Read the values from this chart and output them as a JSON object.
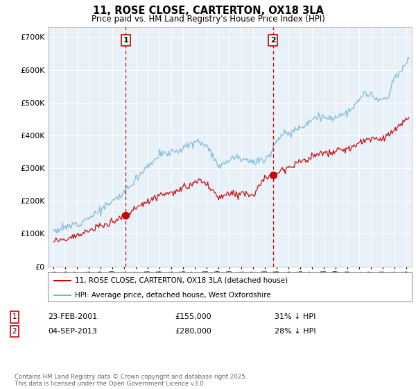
{
  "title": "11, ROSE CLOSE, CARTERTON, OX18 3LA",
  "subtitle": "Price paid vs. HM Land Registry's House Price Index (HPI)",
  "ytick_values": [
    0,
    100000,
    200000,
    300000,
    400000,
    500000,
    600000,
    700000
  ],
  "ylim": [
    0,
    730000
  ],
  "xlim_start": 1994.5,
  "xlim_end": 2025.5,
  "plot_bg_color": "#e8f0f8",
  "line1_color": "#cc0000",
  "line2_color": "#7ab8d9",
  "transaction1": {
    "date": "23-FEB-2001",
    "price": 155000,
    "pct": "31%",
    "label": "1"
  },
  "transaction2": {
    "date": "04-SEP-2013",
    "price": 280000,
    "pct": "28%",
    "label": "2"
  },
  "transaction1_x": 2001.14,
  "transaction2_x": 2013.67,
  "legend_line1": "11, ROSE CLOSE, CARTERTON, OX18 3LA (detached house)",
  "legend_line2": "HPI: Average price, detached house, West Oxfordshire",
  "footnote": "Contains HM Land Registry data © Crown copyright and database right 2025.\nThis data is licensed under the Open Government Licence v3.0."
}
